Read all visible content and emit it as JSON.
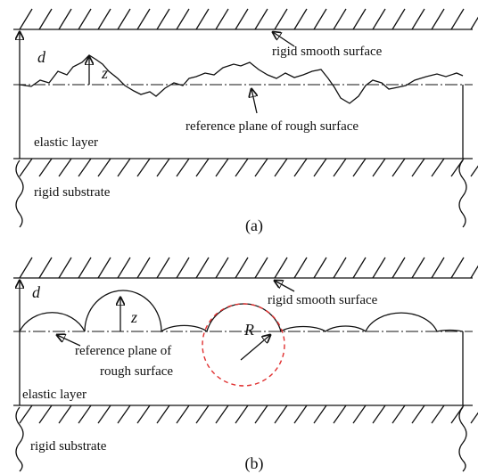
{
  "panel_a": {
    "gap_label": "d",
    "height_label": "z",
    "top_surface": "rigid smooth surface",
    "reference_plane": "reference plane of rough surface",
    "layer": "elastic layer",
    "substrate": "rigid substrate",
    "caption": "(a)"
  },
  "panel_b": {
    "gap_label": "d",
    "height_label": "z",
    "top_surface": "rigid smooth surface",
    "radius_label": "R",
    "reference_plane": [
      "reference plane of",
      "rough surface"
    ],
    "layer": "elastic layer",
    "substrate": "rigid substrate",
    "caption": "(b)"
  }
}
